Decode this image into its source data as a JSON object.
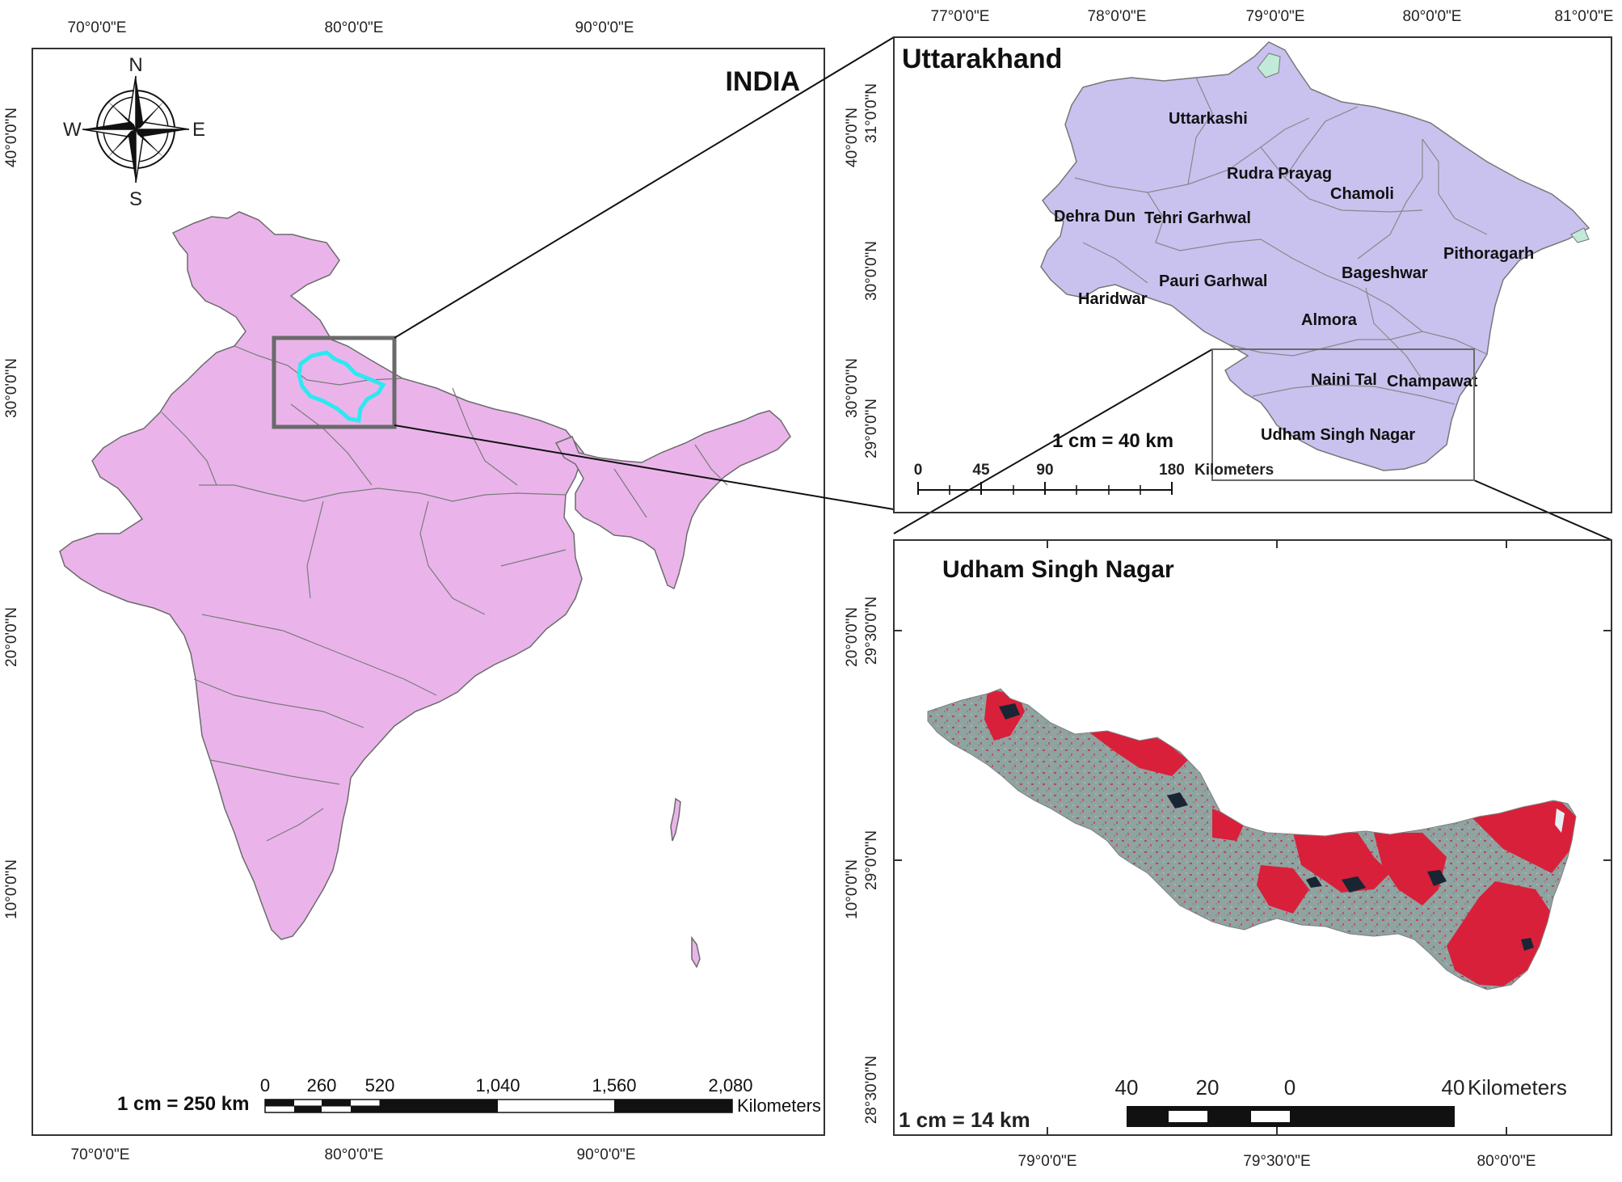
{
  "colors": {
    "india_fill": "#eab4ea",
    "india_stroke": "#6b6b6b",
    "uttarakhand_fill": "#c9c2ef",
    "uttarakhand_stroke": "#777777",
    "highlight_outline": "#2ee8f0",
    "extent_box": "#6a6a6a",
    "raster_vegetation": "#d8203a",
    "raster_soil": "#8fa3a0",
    "raster_water": "#1a2533"
  },
  "panels": {
    "india": {
      "title": "INDIA",
      "top_ticks": [
        "70°0'0\"E",
        "80°0'0\"E",
        "90°0'0\"E"
      ],
      "bottom_ticks": [
        "70°0'0\"E",
        "80°0'0\"E",
        "90°0'0\"E"
      ],
      "left_ticks": [
        "40°0'0\"N",
        "30°0'0\"N",
        "20°0'0\"N",
        "10°0'0\"N"
      ],
      "right_ticks": [
        "40°0'0\"N",
        "30°0'0\"N",
        "20°0'0\"N",
        "10°0'0\"N"
      ],
      "compass": {
        "n": "N",
        "s": "S",
        "e": "E",
        "w": "W"
      },
      "scale_text": "1 cm = 250 km",
      "scale_labels": [
        "0",
        "260",
        "520",
        "1,040",
        "1,560",
        "2,080"
      ],
      "scale_unit": "Kilometers"
    },
    "uttarakhand": {
      "title": "Uttarakhand",
      "top_ticks": [
        "77°0'0\"E",
        "78°0'0\"E",
        "79°0'0\"E",
        "80°0'0\"E",
        "81°0'0\"E"
      ],
      "left_ticks": [
        "31°0'0\"N",
        "30°0'0\"N",
        "29°0'0\"N"
      ],
      "districts": [
        "Uttarkashi",
        "Rudra Prayag",
        "Chamoli",
        "Dehra Dun",
        "Tehri Garhwal",
        "Pithoragarh",
        "Bageshwar",
        "Pauri Garhwal",
        "Haridwar",
        "Almora",
        "Naini Tal",
        "Champawat",
        "Udham Singh Nagar"
      ],
      "scale_text": "1 cm = 40 km",
      "scale_labels": [
        "0",
        "45",
        "90",
        "180"
      ],
      "scale_unit": "Kilometers"
    },
    "udham": {
      "title": "Udham Singh Nagar",
      "left_ticks": [
        "29°30'0\"N",
        "29°0'0\"N",
        "28°30'0\"N"
      ],
      "bottom_ticks": [
        "79°0'0\"E",
        "79°30'0\"E",
        "80°0'0\"E"
      ],
      "scale_text": "1 cm = 14 km",
      "scale_labels": [
        "40",
        "20",
        "0",
        "40"
      ],
      "scale_unit": "Kilometers"
    }
  }
}
